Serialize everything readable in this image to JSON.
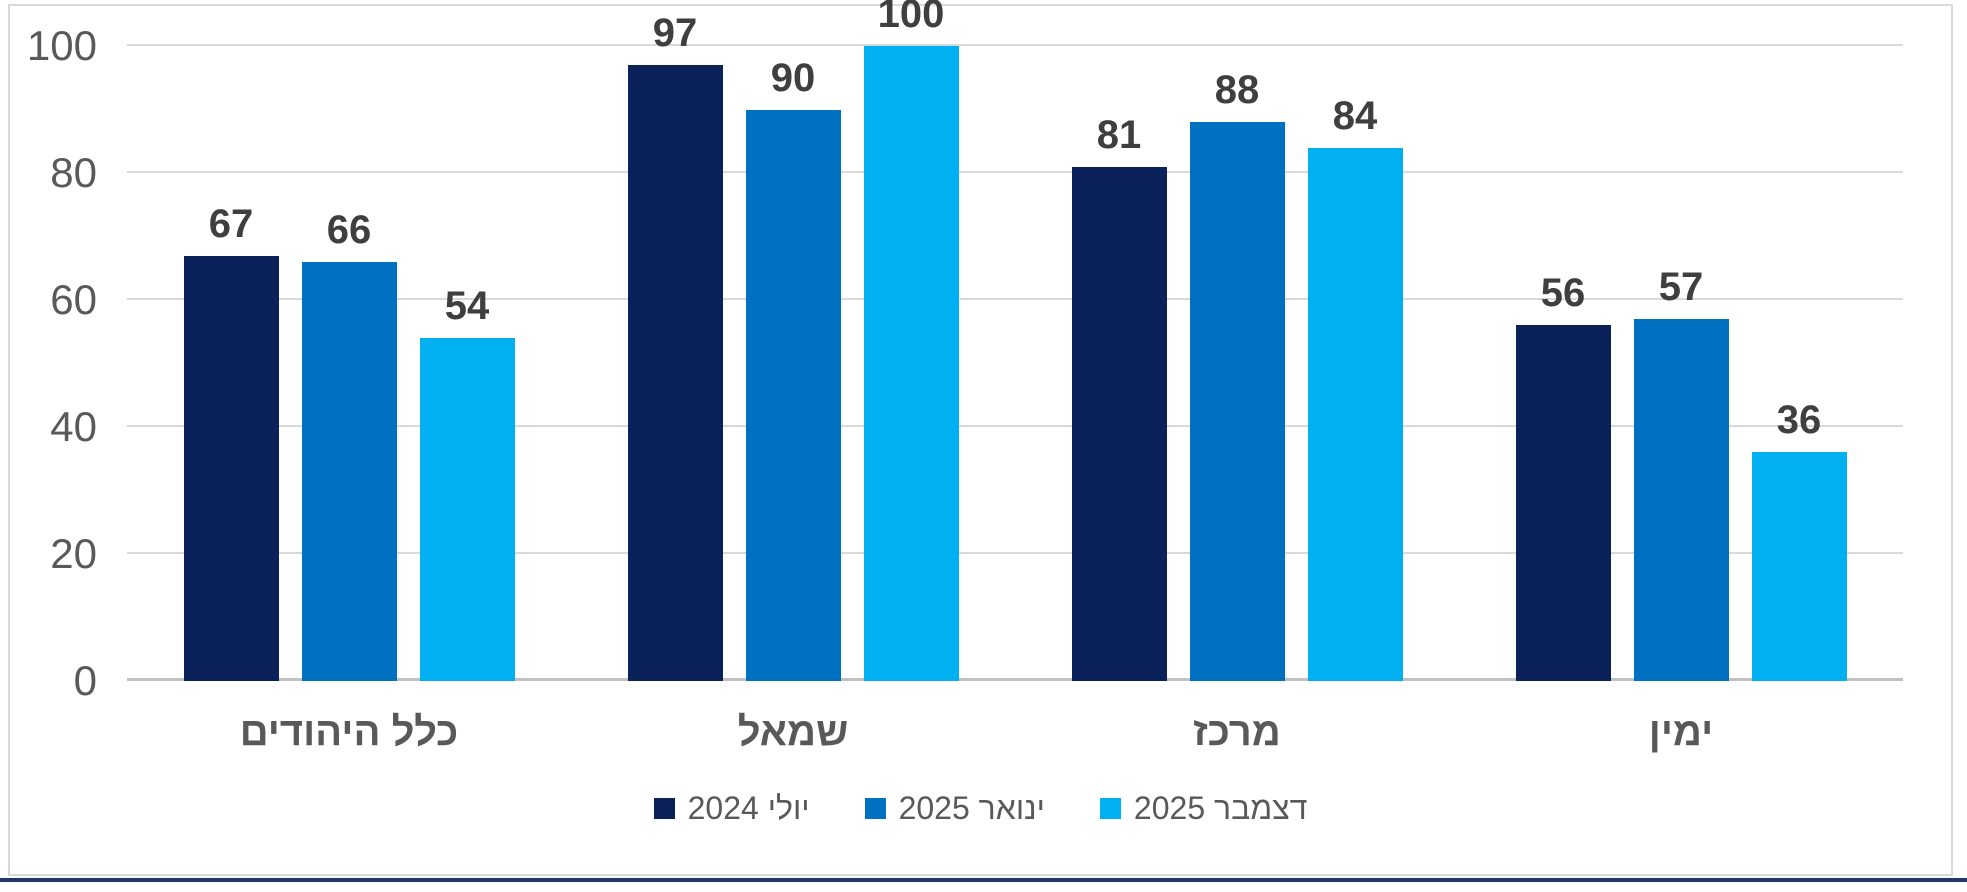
{
  "chart_data": {
    "type": "bar",
    "categories": [
      "כלל היהודים",
      "שמאל",
      "מרכז",
      "ימין"
    ],
    "series": [
      {
        "name": "יולי 2024",
        "color": "#0a2159",
        "values": [
          67,
          97,
          81,
          56
        ]
      },
      {
        "name": "ינואר 2025",
        "color": "#0070c0",
        "values": [
          66,
          90,
          88,
          57
        ]
      },
      {
        "name": "דצמבר 2025",
        "color": "#00b0f0",
        "values": [
          54,
          100,
          84,
          36
        ]
      }
    ],
    "title": "",
    "xlabel": "",
    "ylabel": "",
    "ylim": [
      0,
      100
    ],
    "y_ticks": [
      0,
      20,
      40,
      60,
      80,
      100
    ],
    "grid": true,
    "data_labels": true,
    "legend_position": "bottom",
    "text_direction": "rtl"
  },
  "frame": {
    "border_color": "#d9d9d9",
    "bottom_line_color": "#1f3864",
    "gridline_color": "#d9d9d9",
    "axis_text_color": "#595959",
    "data_label_color": "#3f3f3f"
  }
}
